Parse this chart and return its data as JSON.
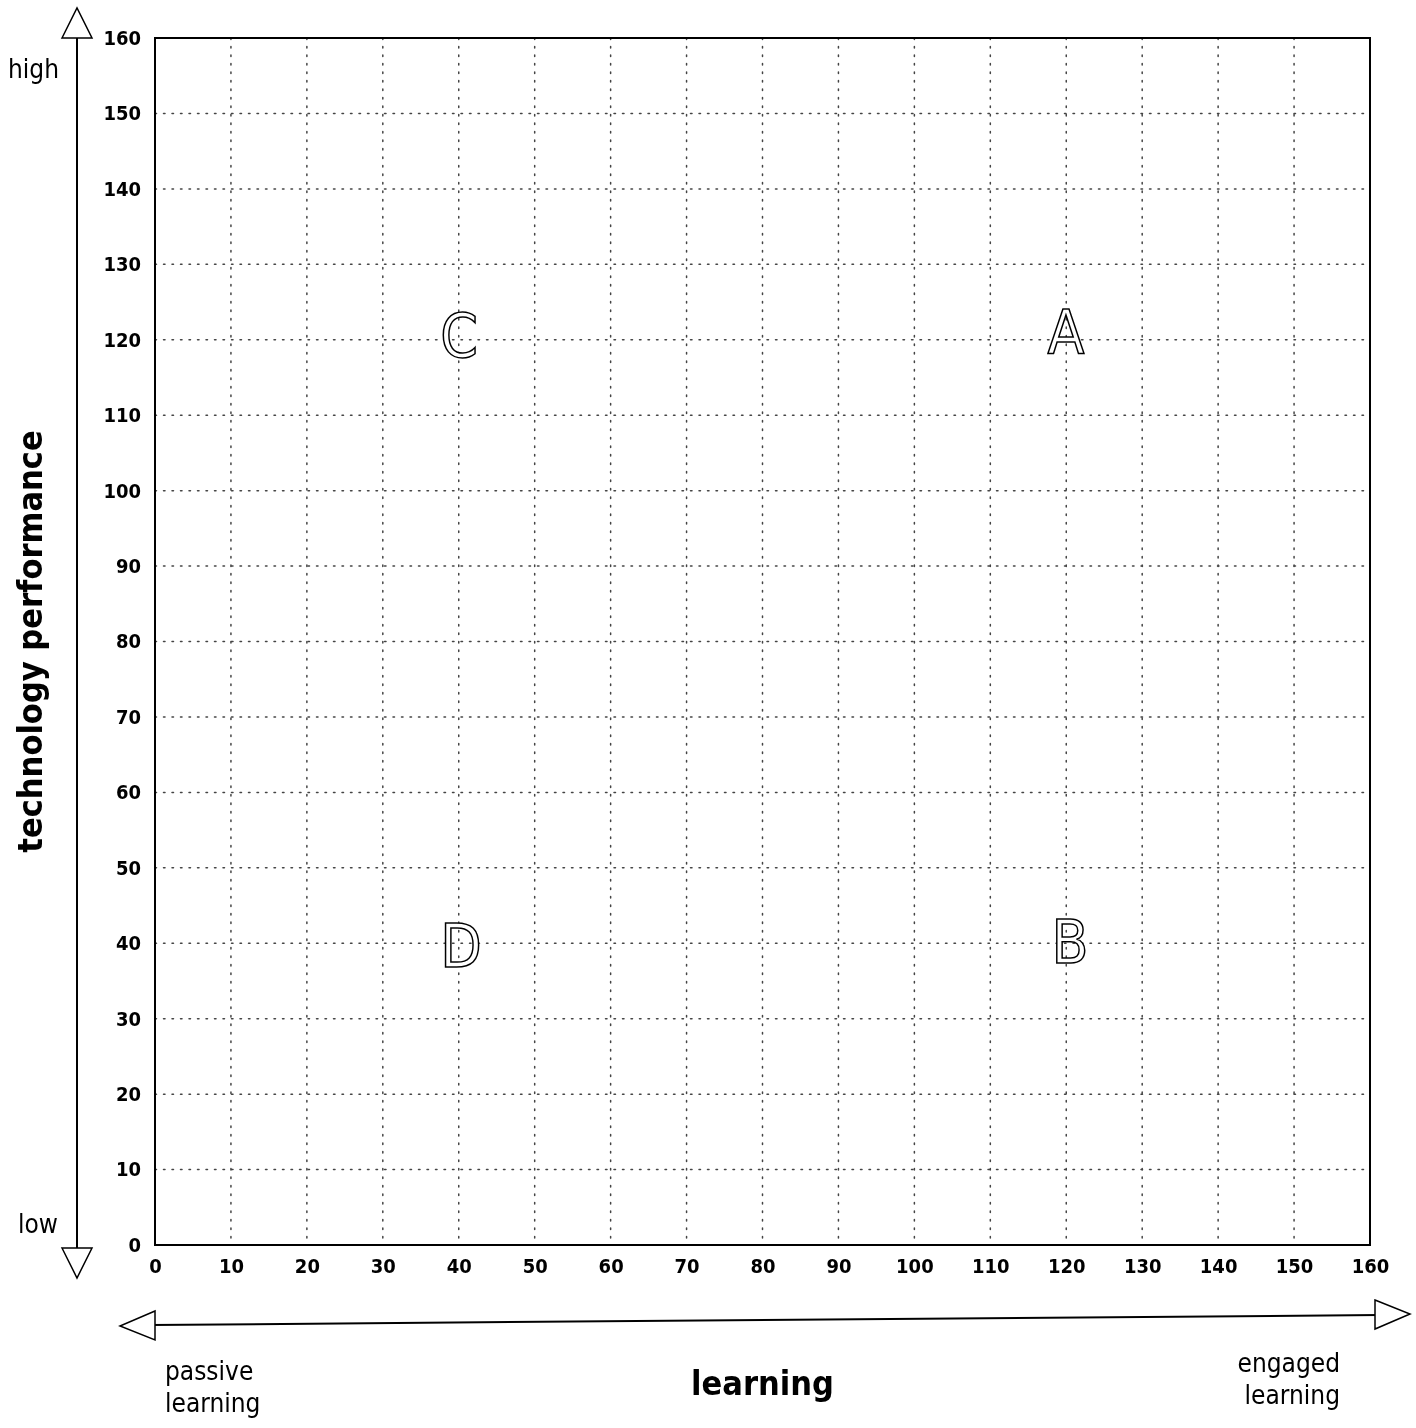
{
  "chart_data": {
    "type": "scatter",
    "xlabel": "learning",
    "ylabel": "technology performance",
    "xlim": [
      0,
      160
    ],
    "ylim": [
      0,
      160
    ],
    "xticks": [
      0,
      10,
      20,
      30,
      40,
      50,
      60,
      70,
      80,
      90,
      100,
      110,
      120,
      130,
      140,
      150,
      160
    ],
    "yticks": [
      0,
      10,
      20,
      30,
      40,
      50,
      60,
      70,
      80,
      90,
      100,
      110,
      120,
      130,
      140,
      150,
      160
    ],
    "grid": true,
    "line_style": "dotted",
    "annotations": [
      "high",
      "low",
      "passive learning",
      "engaged learning",
      "A",
      "B",
      "C",
      "D"
    ]
  }
}
